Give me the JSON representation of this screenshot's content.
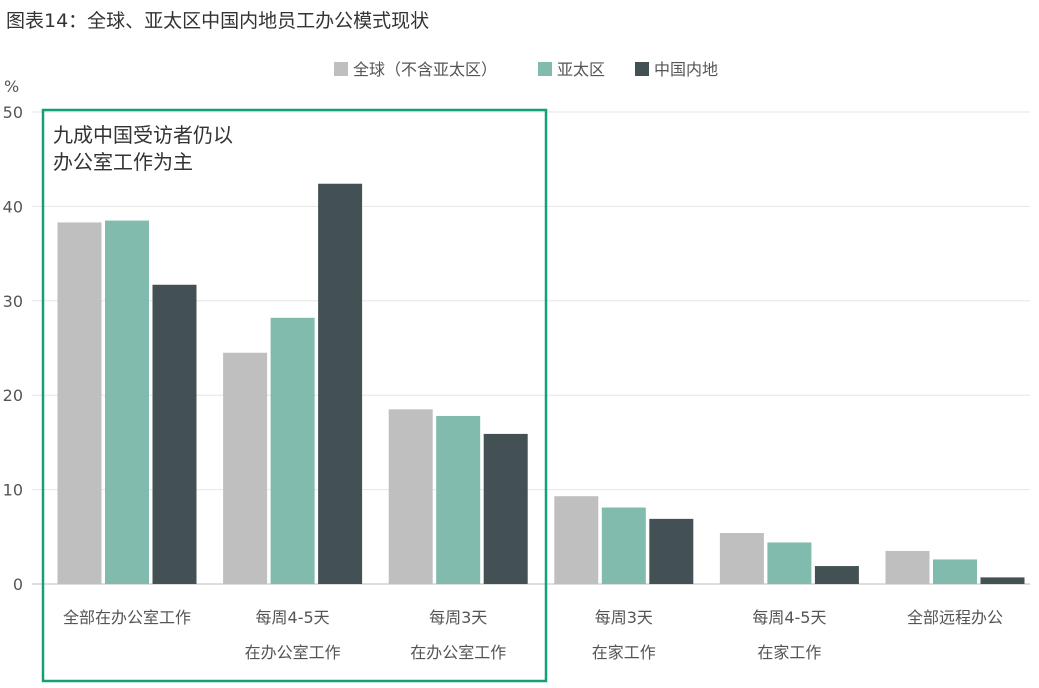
{
  "chart_data": {
    "type": "bar",
    "title": "图表14：全球、亚太区中国内地员工办公模式现状",
    "ylabel": "%",
    "ylim": [
      0,
      50
    ],
    "yticks": [
      0,
      10,
      20,
      30,
      40,
      50
    ],
    "grid": true,
    "legend_position": "top-center",
    "categories": [
      [
        "全部在办公室工作"
      ],
      [
        "每周4-5天",
        "在办公室工作"
      ],
      [
        "每周3天",
        "在办公室工作"
      ],
      [
        "每周3天",
        "在家工作"
      ],
      [
        "每周4-5天",
        "在家工作"
      ],
      [
        "全部远程办公"
      ]
    ],
    "series": [
      {
        "name": "全球（不含亚太区）",
        "color": "#bfbfbf",
        "values": [
          38.3,
          24.5,
          18.5,
          9.3,
          5.4,
          3.5
        ]
      },
      {
        "name": "亚太区",
        "color": "#80bbad",
        "values": [
          38.5,
          28.2,
          17.8,
          8.1,
          4.4,
          2.6
        ]
      },
      {
        "name": "中国内地",
        "color": "#435155",
        "values": [
          31.7,
          42.4,
          15.9,
          6.9,
          1.9,
          0.7
        ]
      }
    ],
    "annotation": {
      "lines": [
        "九成中国受访者仍以",
        "办公室工作为主"
      ],
      "box_color": "#12a079"
    }
  }
}
